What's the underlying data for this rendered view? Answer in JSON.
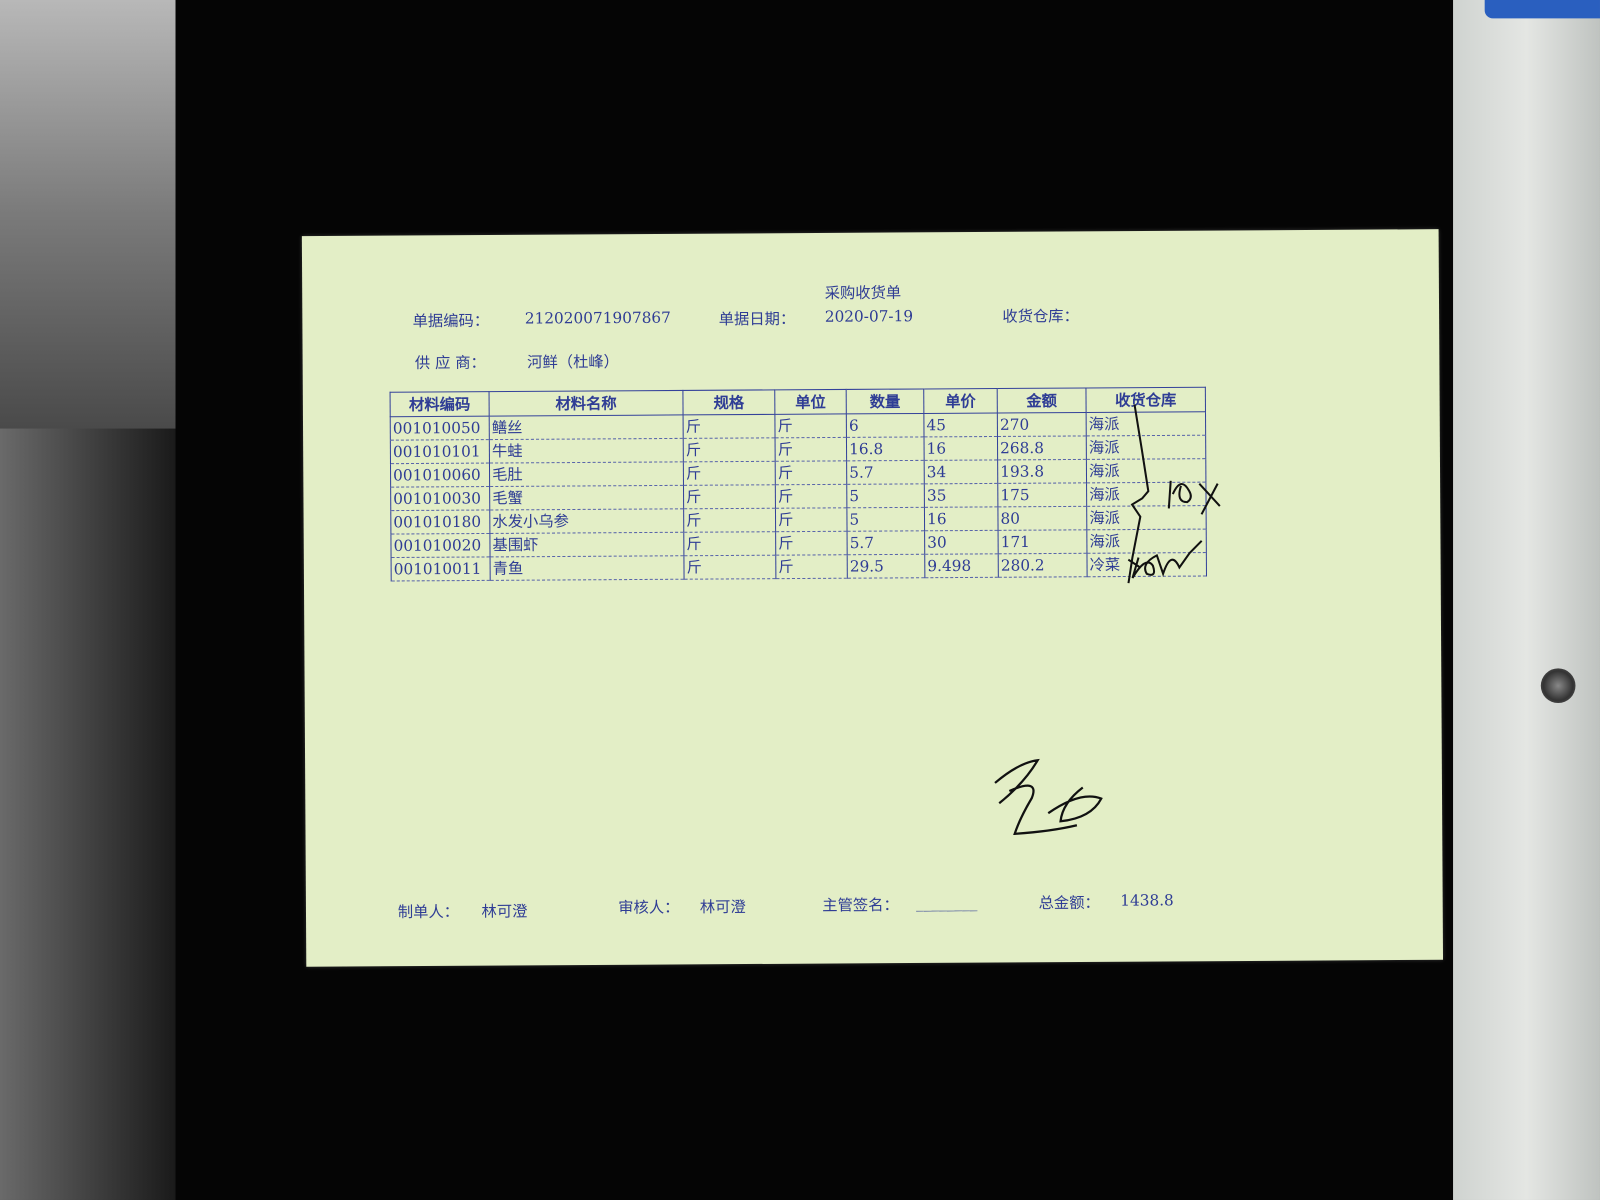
{
  "document": {
    "title": "采购收货单",
    "header": {
      "doc_no_label": "单据编码：",
      "doc_no": "212020071907867",
      "doc_date_label": "单据日期：",
      "doc_date": "2020-07-19",
      "warehouse_label": "收货仓库：",
      "supplier_label": "供 应 商：",
      "supplier": "河鲜（杜峰）"
    },
    "table": {
      "columns": [
        "材料编码",
        "材料名称",
        "规格",
        "单位",
        "数量",
        "单价",
        "金额",
        "收货仓库"
      ],
      "rows": [
        [
          "001010050",
          "鳝丝",
          "斤",
          "斤",
          "6",
          "45",
          "270",
          "海派"
        ],
        [
          "001010101",
          "牛蛙",
          "斤",
          "斤",
          "16.8",
          "16",
          "268.8",
          "海派"
        ],
        [
          "001010060",
          "毛肚",
          "斤",
          "斤",
          "5.7",
          "34",
          "193.8",
          "海派"
        ],
        [
          "001010030",
          "毛蟹",
          "斤",
          "斤",
          "5",
          "35",
          "175",
          "海派"
        ],
        [
          "001010180",
          "水发小乌参",
          "斤",
          "斤",
          "5",
          "16",
          "80",
          "海派"
        ],
        [
          "001010020",
          "基围虾",
          "斤",
          "斤",
          "5.7",
          "30",
          "171",
          "海派"
        ],
        [
          "001010011",
          "青鱼",
          "斤",
          "斤",
          "29.5",
          "9.498",
          "280.2",
          "冷菜"
        ]
      ]
    },
    "footer": {
      "maker_label": "制单人：",
      "maker": "林可澄",
      "reviewer_label": "审核人：",
      "reviewer": "林可澄",
      "supervisor_label": "主管签名：",
      "supervisor": "________",
      "total_label": "总金额：",
      "total": "1438.8"
    },
    "colors": {
      "paper": "#e3eec6",
      "ink": "#2f3d95",
      "background": "#050505"
    }
  }
}
